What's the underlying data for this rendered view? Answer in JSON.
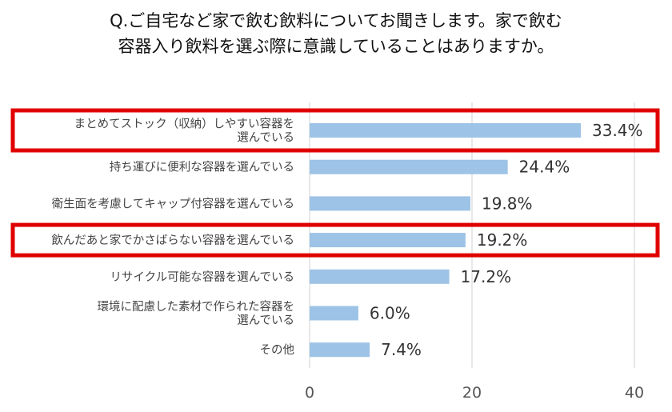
{
  "title": {
    "line1": "Q.ご自宅など家で飲む飲料についてお聞きします。家で飲む",
    "line2": "容器入り飲料を選ぶ際に意識していることはありますか。"
  },
  "chart_data": {
    "type": "bar",
    "orientation": "horizontal",
    "categories": [
      [
        "まとめてストック（収納）しやすい容器を",
        "選んでいる"
      ],
      [
        "持ち運びに便利な容器を選んでいる"
      ],
      [
        "衛生面を考慮してキャップ付容器を選んでいる"
      ],
      [
        "飲んだあと家でかさばらない容器を選んでいる"
      ],
      [
        "リサイクル可能な容器を選んでいる"
      ],
      [
        "環境に配慮した素材で作られた容器を",
        "選んでいる"
      ],
      [
        "その他"
      ]
    ],
    "values": [
      33.4,
      24.4,
      19.8,
      19.2,
      17.2,
      6.0,
      7.4
    ],
    "value_labels": [
      "33.4%",
      "24.4%",
      "19.8%",
      "19.2%",
      "17.2%",
      "6.0%",
      "7.4%"
    ],
    "highlighted": [
      0,
      3
    ],
    "xlim": [
      0,
      40
    ],
    "xticks": [
      0,
      20,
      40
    ],
    "grid": true,
    "bar_color": "#9dc3e6",
    "highlight_color": "#e00000",
    "grid_color": "#d9d9d9"
  }
}
